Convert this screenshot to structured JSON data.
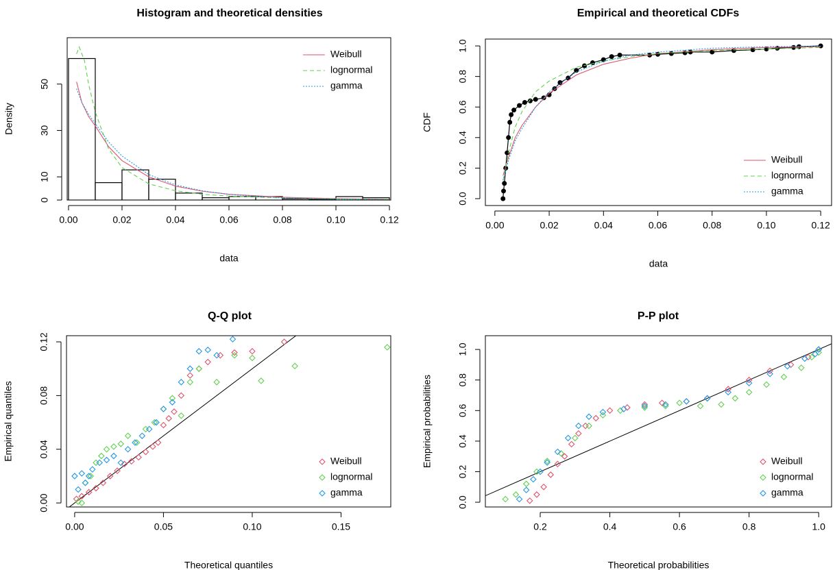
{
  "chart_data": [
    {
      "type": "histogram",
      "title": "Histogram and theoretical densities",
      "x_label": "data",
      "y_label": "Density",
      "bins": [
        0,
        0.01,
        0.02,
        0.03,
        0.04,
        0.05,
        0.06,
        0.07,
        0.08,
        0.09,
        0.1,
        0.11,
        0.12
      ],
      "values": [
        61,
        7.5,
        13,
        9,
        3,
        1,
        1.5,
        1.5,
        0.5,
        0.3,
        1.5,
        1
      ],
      "xlim": [
        -0.0005,
        0.1205
      ],
      "ylim": [
        0,
        70
      ],
      "xticks": [
        {
          "value": 0,
          "label": "0.00"
        },
        {
          "value": 0.02,
          "label": "0.02"
        },
        {
          "value": 0.04,
          "label": "0.04"
        },
        {
          "value": 0.06,
          "label": "0.06"
        },
        {
          "value": 0.08,
          "label": "0.08"
        },
        {
          "value": 0.1,
          "label": "0.10"
        },
        {
          "value": 0.12,
          "label": "0.12"
        }
      ],
      "yticks": [
        0,
        10,
        30,
        50
      ],
      "legend": "topright",
      "series": [
        {
          "name": "Weibull",
          "color": "#DF536B",
          "linestyle": "solid",
          "x": [
            0.003,
            0.005,
            0.0075,
            0.01,
            0.015,
            0.02,
            0.03,
            0.04,
            0.05,
            0.06,
            0.08,
            0.1,
            0.12
          ],
          "values": [
            51,
            42,
            36,
            32,
            23,
            17,
            10,
            6,
            3.8,
            2.5,
            1.2,
            0.6,
            0.3
          ]
        },
        {
          "name": "lognormal",
          "color": "#61D04F",
          "linestyle": "dashed",
          "x": [
            0.003,
            0.004,
            0.006,
            0.0075,
            0.01,
            0.015,
            0.02,
            0.03,
            0.04,
            0.05,
            0.06,
            0.08,
            0.1,
            0.12
          ],
          "values": [
            63,
            66,
            60,
            50,
            38,
            22,
            14,
            7,
            4,
            2.5,
            1.7,
            0.9,
            0.5,
            0.3
          ]
        },
        {
          "name": "gamma",
          "color": "#2297E6",
          "linestyle": "dotted",
          "x": [
            0.003,
            0.005,
            0.0075,
            0.01,
            0.015,
            0.02,
            0.03,
            0.04,
            0.05,
            0.06,
            0.08,
            0.1,
            0.12
          ],
          "values": [
            48,
            42,
            37,
            33,
            25,
            19,
            11,
            6.5,
            4,
            2.4,
            0.9,
            0.35,
            0.15
          ]
        }
      ]
    },
    {
      "type": "cdf",
      "title": "Empirical and theoretical CDFs",
      "x_label": "data",
      "y_label": "CDF",
      "xlim": [
        -0.0035,
        0.124
      ],
      "ylim": [
        -0.045,
        1.045
      ],
      "xticks": [
        {
          "value": 0,
          "label": "0.00"
        },
        {
          "value": 0.02,
          "label": "0.02"
        },
        {
          "value": 0.04,
          "label": "0.04"
        },
        {
          "value": 0.06,
          "label": "0.06"
        },
        {
          "value": 0.08,
          "label": "0.08"
        },
        {
          "value": 0.1,
          "label": "0.10"
        },
        {
          "value": 0.12,
          "label": "0.12"
        }
      ],
      "yticks": [
        {
          "value": 0,
          "label": "0.0"
        },
        {
          "value": 0.2,
          "label": "0.2"
        },
        {
          "value": 0.4,
          "label": "0.4"
        },
        {
          "value": 0.6,
          "label": "0.6"
        },
        {
          "value": 0.8,
          "label": "0.8"
        },
        {
          "value": 1,
          "label": "1.0"
        }
      ],
      "legend": "bottomright",
      "empirical": {
        "color": "#000000",
        "x": [
          0.003,
          0.0032,
          0.0035,
          0.004,
          0.0045,
          0.005,
          0.0055,
          0.006,
          0.007,
          0.009,
          0.011,
          0.013,
          0.015,
          0.018,
          0.02,
          0.022,
          0.024,
          0.027,
          0.03,
          0.033,
          0.036,
          0.04,
          0.043,
          0.046,
          0.057,
          0.06,
          0.065,
          0.07,
          0.072,
          0.08,
          0.088,
          0.095,
          0.1,
          0.104,
          0.11,
          0.112,
          0.12
        ],
        "values": [
          0,
          0.05,
          0.1,
          0.2,
          0.3,
          0.4,
          0.5,
          0.55,
          0.58,
          0.61,
          0.63,
          0.64,
          0.65,
          0.66,
          0.68,
          0.72,
          0.76,
          0.79,
          0.84,
          0.87,
          0.89,
          0.91,
          0.93,
          0.94,
          0.94,
          0.945,
          0.95,
          0.955,
          0.96,
          0.96,
          0.97,
          0.975,
          0.98,
          0.985,
          0.99,
          0.995,
          1
        ]
      },
      "series": [
        {
          "name": "Weibull",
          "color": "#DF536B",
          "linestyle": "solid",
          "x": [
            0.003,
            0.005,
            0.0075,
            0.01,
            0.015,
            0.02,
            0.03,
            0.04,
            0.05,
            0.06,
            0.08,
            0.1,
            0.12
          ],
          "values": [
            0.15,
            0.27,
            0.4,
            0.48,
            0.6,
            0.69,
            0.81,
            0.88,
            0.92,
            0.95,
            0.975,
            0.99,
            0.995
          ]
        },
        {
          "name": "lognormal",
          "color": "#61D04F",
          "linestyle": "dashed",
          "x": [
            0.003,
            0.005,
            0.0075,
            0.01,
            0.015,
            0.02,
            0.03,
            0.04,
            0.05,
            0.06,
            0.08,
            0.1,
            0.12
          ],
          "values": [
            0.12,
            0.3,
            0.47,
            0.57,
            0.7,
            0.77,
            0.86,
            0.9,
            0.93,
            0.95,
            0.97,
            0.98,
            0.99
          ]
        },
        {
          "name": "gamma",
          "color": "#2297E6",
          "linestyle": "dotted",
          "x": [
            0.003,
            0.005,
            0.0075,
            0.01,
            0.015,
            0.02,
            0.03,
            0.04,
            0.05,
            0.06,
            0.08,
            0.1,
            0.12
          ],
          "values": [
            0.12,
            0.25,
            0.38,
            0.46,
            0.6,
            0.7,
            0.83,
            0.9,
            0.94,
            0.96,
            0.985,
            0.995,
            0.998
          ]
        }
      ]
    },
    {
      "type": "scatter",
      "title": "Q-Q plot",
      "x_label": "Theoretical quantiles",
      "y_label": "Empirical quantiles",
      "xlim": [
        -0.0046,
        0.178
      ],
      "ylim": [
        -0.003,
        0.1246
      ],
      "diagonal": true,
      "xticks": [
        {
          "value": 0,
          "label": "0.00"
        },
        {
          "value": 0.05,
          "label": "0.05"
        },
        {
          "value": 0.1,
          "label": "0.10"
        },
        {
          "value": 0.15,
          "label": "0.15"
        }
      ],
      "yticks": [
        {
          "value": 0,
          "label": "0.00"
        },
        {
          "value": 0.04,
          "label": "0.04"
        },
        {
          "value": 0.08,
          "label": "0.08"
        },
        {
          "value": 0.12,
          "label": "0.12"
        }
      ],
      "legend": "bottomright",
      "series": [
        {
          "name": "Weibull",
          "color": "#DF536B",
          "marker": "diamond",
          "x": [
            0.001,
            0.004,
            0.008,
            0.012,
            0.016,
            0.02,
            0.024,
            0.028,
            0.032,
            0.036,
            0.04,
            0.044,
            0.047,
            0.05,
            0.053,
            0.056,
            0.06,
            0.065,
            0.07,
            0.075,
            0.082,
            0.09,
            0.1,
            0.118
          ],
          "values": [
            0.003,
            0.005,
            0.008,
            0.011,
            0.015,
            0.02,
            0.024,
            0.029,
            0.031,
            0.034,
            0.038,
            0.042,
            0.045,
            0.058,
            0.063,
            0.068,
            0.08,
            0.095,
            0.1,
            0.105,
            0.11,
            0.112,
            0.113,
            0.12
          ]
        },
        {
          "name": "lognormal",
          "color": "#61D04F",
          "marker": "diamond",
          "x": [
            0.002,
            0.004,
            0.006,
            0.009,
            0.012,
            0.015,
            0.018,
            0.022,
            0.026,
            0.03,
            0.035,
            0.04,
            0.045,
            0.05,
            0.055,
            0.06,
            0.065,
            0.07,
            0.08,
            0.09,
            0.1,
            0.105,
            0.124,
            0.176
          ],
          "values": [
            0.001,
            0,
            0.015,
            0.02,
            0.03,
            0.035,
            0.04,
            0.042,
            0.044,
            0.05,
            0.045,
            0.055,
            0.06,
            0.07,
            0.078,
            0.065,
            0.09,
            0.1,
            0.09,
            0.11,
            0.108,
            0.091,
            0.102,
            0.116
          ]
        },
        {
          "name": "gamma",
          "color": "#2297E6",
          "marker": "diamond",
          "x": [
            0,
            0.002,
            0.004,
            0.006,
            0.008,
            0.01,
            0.014,
            0.018,
            0.022,
            0.026,
            0.03,
            0.034,
            0.038,
            0.042,
            0.046,
            0.05,
            0.055,
            0.06,
            0.065,
            0.07,
            0.075,
            0.08,
            0.089
          ],
          "values": [
            0.02,
            0.01,
            0.022,
            0.015,
            0.02,
            0.025,
            0.03,
            0.032,
            0.035,
            0.03,
            0.04,
            0.045,
            0.05,
            0.055,
            0.06,
            0.07,
            0.075,
            0.09,
            0.1,
            0.113,
            0.114,
            0.11,
            0.122
          ]
        }
      ]
    },
    {
      "type": "scatter",
      "title": "P-P plot",
      "x_label": "Theoretical probabilities",
      "y_label": "Empirical probabilities",
      "xlim": [
        0.0424,
        1.037
      ],
      "ylim": [
        -0.031,
        1.09
      ],
      "diagonal": true,
      "xticks": [
        {
          "value": 0.2,
          "label": "0.2"
        },
        {
          "value": 0.4,
          "label": "0.4"
        },
        {
          "value": 0.6,
          "label": "0.6"
        },
        {
          "value": 0.8,
          "label": "0.8"
        },
        {
          "value": 1,
          "label": "1.0"
        }
      ],
      "yticks": [
        {
          "value": 0,
          "label": "0.0"
        },
        {
          "value": 0.2,
          "label": "0.2"
        },
        {
          "value": 0.4,
          "label": "0.4"
        },
        {
          "value": 0.6,
          "label": "0.6"
        },
        {
          "value": 0.8,
          "label": "0.8"
        },
        {
          "value": 1,
          "label": "1.0"
        }
      ],
      "legend": "bottomright",
      "series": [
        {
          "name": "Weibull",
          "color": "#DF536B",
          "marker": "diamond",
          "x": [
            0.17,
            0.19,
            0.21,
            0.23,
            0.25,
            0.27,
            0.29,
            0.31,
            0.33,
            0.36,
            0.4,
            0.45,
            0.5,
            0.55,
            0.62,
            0.68,
            0.74,
            0.8,
            0.86,
            0.92,
            0.97,
            1
          ],
          "values": [
            0.01,
            0.05,
            0.1,
            0.18,
            0.25,
            0.3,
            0.38,
            0.45,
            0.5,
            0.55,
            0.6,
            0.62,
            0.64,
            0.65,
            0.66,
            0.68,
            0.74,
            0.8,
            0.86,
            0.9,
            0.95,
            1
          ]
        },
        {
          "name": "lognormal",
          "color": "#61D04F",
          "marker": "diamond",
          "x": [
            0.1,
            0.13,
            0.16,
            0.19,
            0.22,
            0.26,
            0.3,
            0.34,
            0.38,
            0.43,
            0.5,
            0.56,
            0.6,
            0.66,
            0.72,
            0.76,
            0.8,
            0.85,
            0.9,
            0.95,
            0.98,
            1
          ],
          "values": [
            0.02,
            0.05,
            0.12,
            0.2,
            0.27,
            0.32,
            0.42,
            0.5,
            0.57,
            0.6,
            0.62,
            0.63,
            0.65,
            0.63,
            0.64,
            0.68,
            0.72,
            0.77,
            0.82,
            0.88,
            0.95,
            0.98
          ]
        },
        {
          "name": "gamma",
          "color": "#2297E6",
          "marker": "diamond",
          "x": [
            0.14,
            0.16,
            0.18,
            0.2,
            0.22,
            0.25,
            0.28,
            0.31,
            0.34,
            0.38,
            0.44,
            0.5,
            0.56,
            0.62,
            0.68,
            0.74,
            0.8,
            0.86,
            0.91,
            0.96,
            0.99,
            1
          ],
          "values": [
            0.02,
            0.08,
            0.15,
            0.2,
            0.26,
            0.33,
            0.42,
            0.5,
            0.56,
            0.59,
            0.61,
            0.63,
            0.64,
            0.66,
            0.68,
            0.72,
            0.78,
            0.84,
            0.89,
            0.94,
            0.97,
            1
          ]
        }
      ]
    }
  ]
}
